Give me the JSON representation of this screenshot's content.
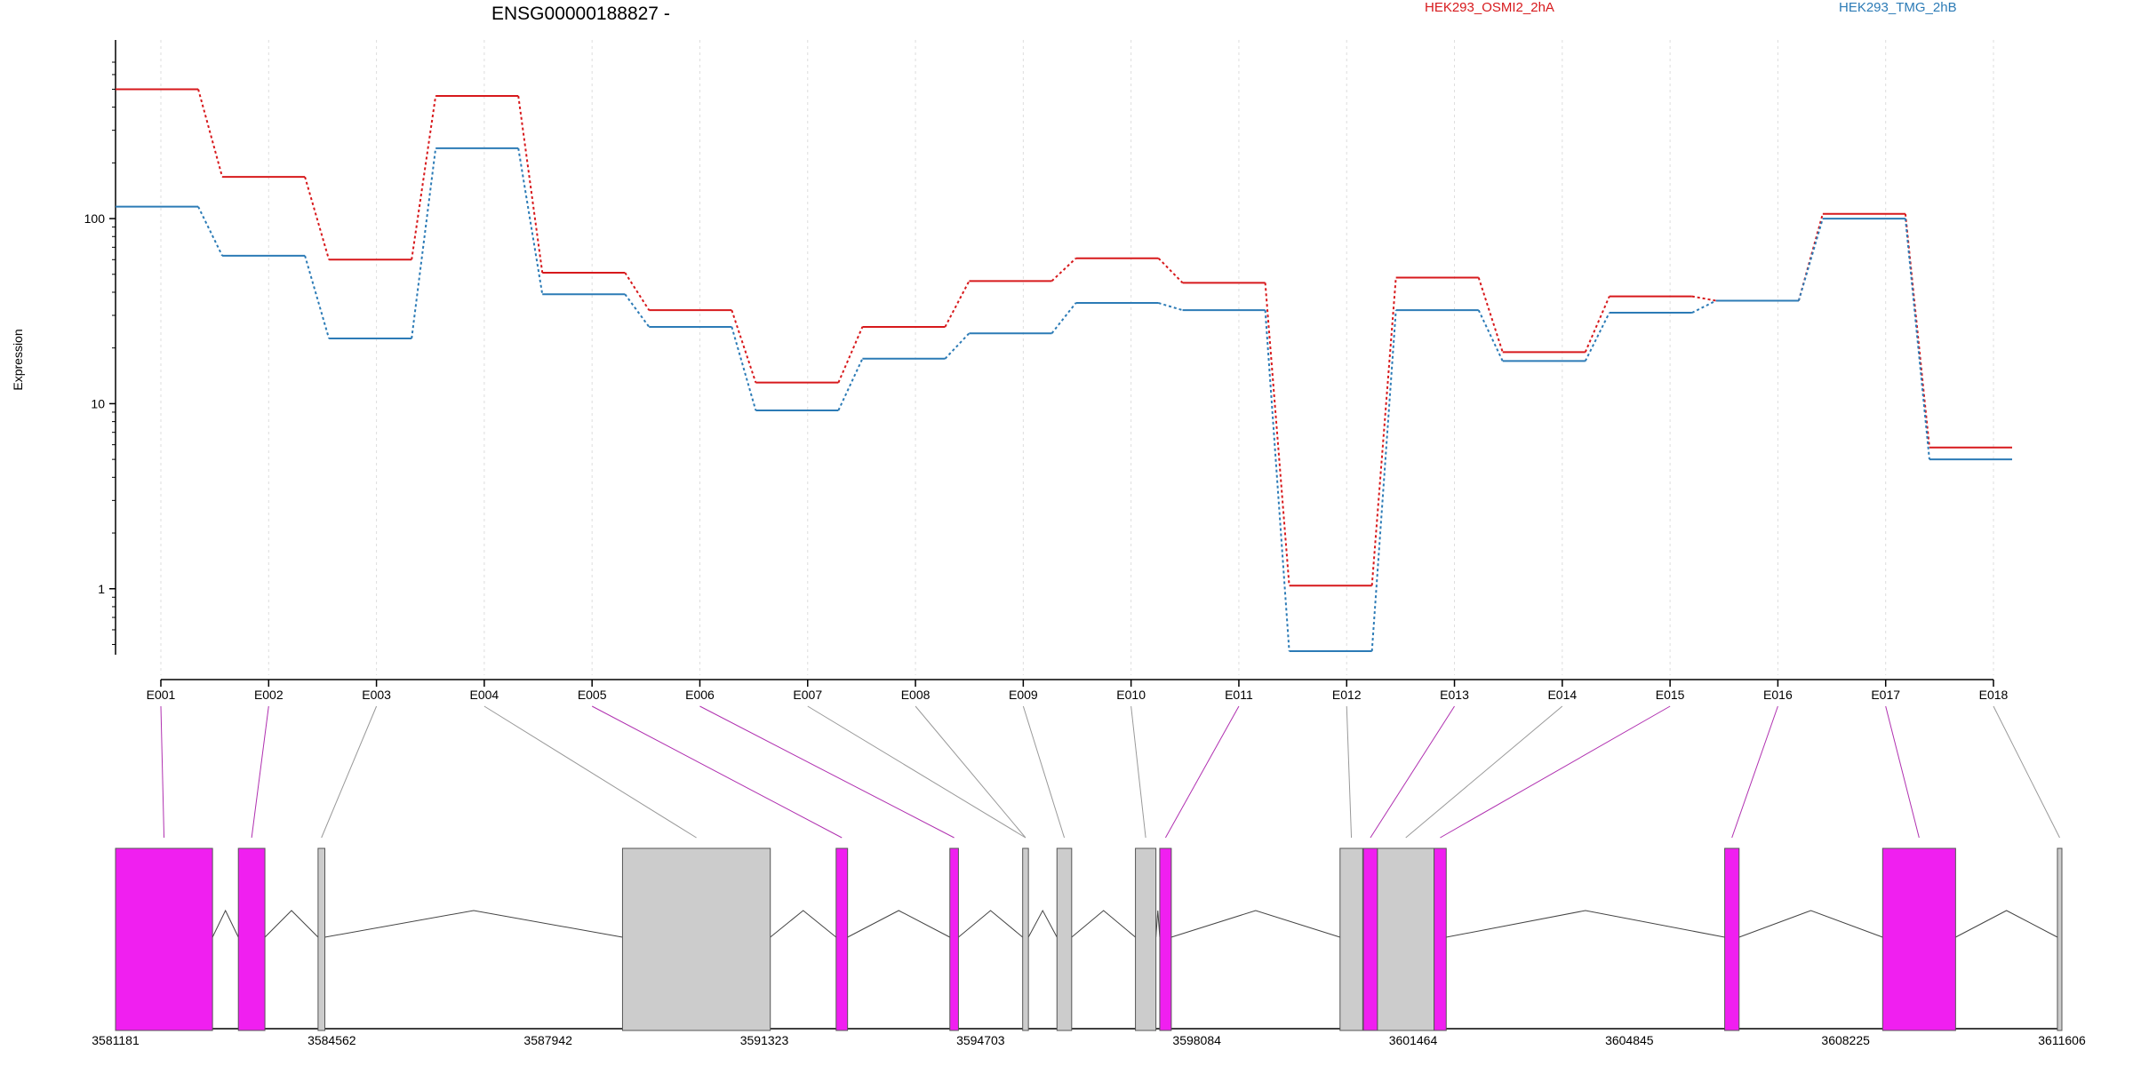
{
  "chart_data": {
    "type": "line",
    "title": "ENSG00000188827 -",
    "ylabel": "Expression",
    "y_scale": "log",
    "ylim": [
      0.45,
      700
    ],
    "y_ticks": [
      {
        "value": 1,
        "label": "1"
      },
      {
        "value": 10,
        "label": "10"
      },
      {
        "value": 100,
        "label": "100"
      }
    ],
    "categories": [
      "E001",
      "E002",
      "E003",
      "E004",
      "E005",
      "E006",
      "E007",
      "E008",
      "E009",
      "E010",
      "E011",
      "E012",
      "E013",
      "E014",
      "E015",
      "E016",
      "E017",
      "E018"
    ],
    "series": [
      {
        "name": "HEK293_OSMI2_2hA",
        "color": "#d7191c",
        "values": [
          500,
          168,
          60,
          460,
          51,
          32,
          13,
          26,
          46,
          61,
          45,
          1.04,
          48,
          19,
          38,
          36,
          106,
          5.8
        ]
      },
      {
        "name": "HEK293_TMG_2hB",
        "color": "#2c7bb6",
        "values": [
          116,
          63,
          22.5,
          240,
          39,
          26,
          9.2,
          17.5,
          24,
          35,
          32,
          0.46,
          32,
          17,
          31,
          36,
          100,
          5
        ]
      }
    ],
    "legend_placement": "top",
    "grid": "vertical dotted",
    "gene_model": {
      "coordinate_ticks": [
        "3581181",
        "3584562",
        "3587942",
        "3591323",
        "3594703",
        "3598084",
        "3601464",
        "3604845",
        "3608225",
        "3611606"
      ],
      "genomic_range": [
        3581181,
        3611606
      ],
      "exon_color_hit": "#f01ff0",
      "exon_color_other": "#cccccc",
      "exons": [
        {
          "start": 3581181,
          "end": 3582697,
          "highlight": true,
          "label_link": "E001"
        },
        {
          "start": 3583101,
          "end": 3583516,
          "highlight": true,
          "label_link": "E002"
        },
        {
          "start": 3584347,
          "end": 3584453,
          "highlight": false,
          "label_link": "E003"
        },
        {
          "start": 3589106,
          "end": 3591416,
          "highlight": false,
          "label_link": "E004"
        },
        {
          "start": 3592445,
          "end": 3592624,
          "highlight": true,
          "label_link": "E005"
        },
        {
          "start": 3594223,
          "end": 3594357,
          "highlight": true,
          "label_link": "E006"
        },
        {
          "start": 3595361,
          "end": 3595451,
          "highlight": false,
          "label_link": "E007"
        },
        {
          "start": 3595897,
          "end": 3596127,
          "highlight": false,
          "label_link": "E009"
        },
        {
          "start": 3597124,
          "end": 3597444,
          "highlight": false,
          "label_link": "E010"
        },
        {
          "start": 3597504,
          "end": 3597684,
          "highlight": true,
          "label_link": "E011"
        },
        {
          "start": 3600322,
          "end": 3600677,
          "highlight": false,
          "label_link": "E012"
        },
        {
          "start": 3600687,
          "end": 3600907,
          "highlight": true,
          "label_link": "E013"
        },
        {
          "start": 3600907,
          "end": 3601792,
          "highlight": false,
          "label_link": "E014"
        },
        {
          "start": 3601792,
          "end": 3601982,
          "highlight": true,
          "label_link": "E015"
        },
        {
          "start": 3606335,
          "end": 3606560,
          "highlight": true,
          "label_link": "E016"
        },
        {
          "start": 3608804,
          "end": 3609944,
          "highlight": true,
          "label_link": "E017"
        },
        {
          "start": 3611536,
          "end": 3611606,
          "highlight": false,
          "label_link": "E018"
        }
      ]
    }
  }
}
